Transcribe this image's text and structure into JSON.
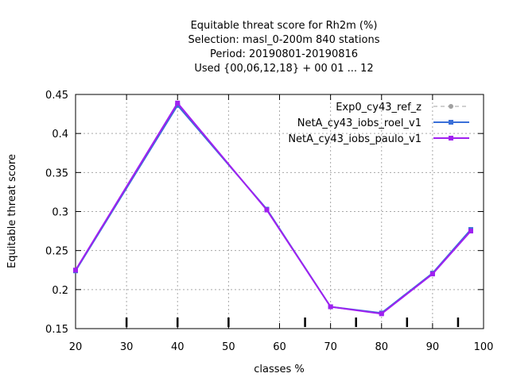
{
  "chart_data": {
    "type": "line",
    "title_lines": [
      "Equitable threat score  for Rh2m (%)",
      "Selection: masl_0-200m    840 stations",
      "Period: 20190801-20190816",
      "Used {00,06,12,18} + 00 01 ... 12"
    ],
    "xlabel": "classes %",
    "ylabel": "Equitable threat score",
    "xlim": [
      20,
      100
    ],
    "ylim": [
      0.15,
      0.45
    ],
    "x_ticks": [
      20,
      30,
      40,
      50,
      60,
      70,
      80,
      90,
      100
    ],
    "y_ticks": [
      "0.15",
      "0.2",
      "0.25",
      "0.3",
      "0.35",
      "0.4",
      "0.45"
    ],
    "class_marks": [
      30,
      40,
      50,
      65,
      75,
      85,
      95
    ],
    "grid": true,
    "legend_position": "top-right",
    "series": [
      {
        "name": "Exp0_cy43_ref_z",
        "color": "#a0a0a0",
        "line_style": "dashed",
        "marker": "circle",
        "x": [
          20,
          40,
          57.5,
          70,
          80,
          90,
          97.5
        ],
        "y": [
          0.224,
          0.437,
          0.303,
          0.178,
          0.17,
          0.221,
          0.277
        ]
      },
      {
        "name": "NetA_cy43_iobs_roel_v1",
        "color": "#3a6fd8",
        "line_style": "solid",
        "marker": "square",
        "x": [
          20,
          40,
          57.5,
          70,
          80,
          90,
          97.5
        ],
        "y": [
          0.224,
          0.436,
          0.303,
          0.178,
          0.17,
          0.221,
          0.277
        ]
      },
      {
        "name": "NetA_cy43_iobs_paulo_v1",
        "color": "#a020f0",
        "line_style": "solid",
        "marker": "square",
        "x": [
          20,
          40,
          57.5,
          70,
          80,
          90,
          97.5
        ],
        "y": [
          0.225,
          0.439,
          0.302,
          0.178,
          0.169,
          0.22,
          0.275
        ]
      }
    ]
  }
}
